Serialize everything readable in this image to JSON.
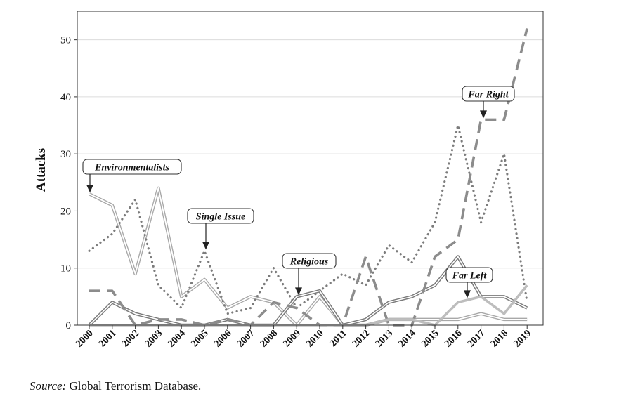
{
  "chart_data": {
    "type": "line",
    "ylabel": "Attacks",
    "xlabel": "",
    "ylim": [
      0,
      55
    ],
    "yticks": [
      0,
      10,
      20,
      30,
      40,
      50
    ],
    "grid": true,
    "x": [
      "2000",
      "2001",
      "2002",
      "2003",
      "2004",
      "2005",
      "2006",
      "2007",
      "2008",
      "2009",
      "2010",
      "2011",
      "2012",
      "2013",
      "2014",
      "2015",
      "2016",
      "2017",
      "2018",
      "2019"
    ],
    "series": [
      {
        "name": "Environmentalists",
        "color": "#a8a8a8",
        "style": "double",
        "values": [
          23,
          21,
          9,
          24,
          5,
          8,
          3,
          5,
          4,
          0,
          5,
          0,
          0,
          1,
          1,
          1,
          1,
          2,
          1,
          1
        ]
      },
      {
        "name": "Single Issue",
        "color": "#7c7c7c",
        "style": "dotted",
        "values": [
          13,
          16,
          22,
          7,
          3,
          13,
          2,
          3,
          10,
          3,
          6,
          9,
          7,
          14,
          11,
          18,
          35,
          18,
          30,
          4
        ]
      },
      {
        "name": "Religious",
        "color": "#7a7a7a",
        "style": "double-dark",
        "values": [
          0,
          4,
          2,
          1,
          0,
          0,
          1,
          0,
          0,
          5,
          6,
          0,
          1,
          4,
          5,
          7,
          12,
          5,
          5,
          3
        ]
      },
      {
        "name": "Far Right",
        "color": "#8c8c8c",
        "style": "dashed",
        "values": [
          6,
          6,
          0,
          1,
          1,
          0,
          1,
          0,
          4,
          3,
          0,
          0,
          12,
          0,
          0,
          12,
          15,
          36,
          36,
          52
        ]
      },
      {
        "name": "Far Left",
        "color": "#bdbdbd",
        "style": "solid-light",
        "values": [
          0,
          0,
          0,
          0,
          0,
          0,
          0,
          0,
          0,
          0,
          0,
          0,
          0,
          1,
          1,
          0,
          4,
          5,
          2,
          7
        ]
      }
    ],
    "annotations": [
      {
        "text": "Environmentalists",
        "points_to_x": "2000",
        "points_to_y": 23
      },
      {
        "text": "Single Issue",
        "points_to_x": "2005",
        "points_to_y": 13
      },
      {
        "text": "Religious",
        "points_to_x": "2009",
        "points_to_y": 5
      },
      {
        "text": "Far Right",
        "points_to_x": "2017",
        "points_to_y": 36
      },
      {
        "text": "Far Left",
        "points_to_x": "2016",
        "points_to_y": 4.5
      }
    ]
  },
  "source": {
    "label": "Source:",
    "text": "Global Terrorism Database."
  }
}
